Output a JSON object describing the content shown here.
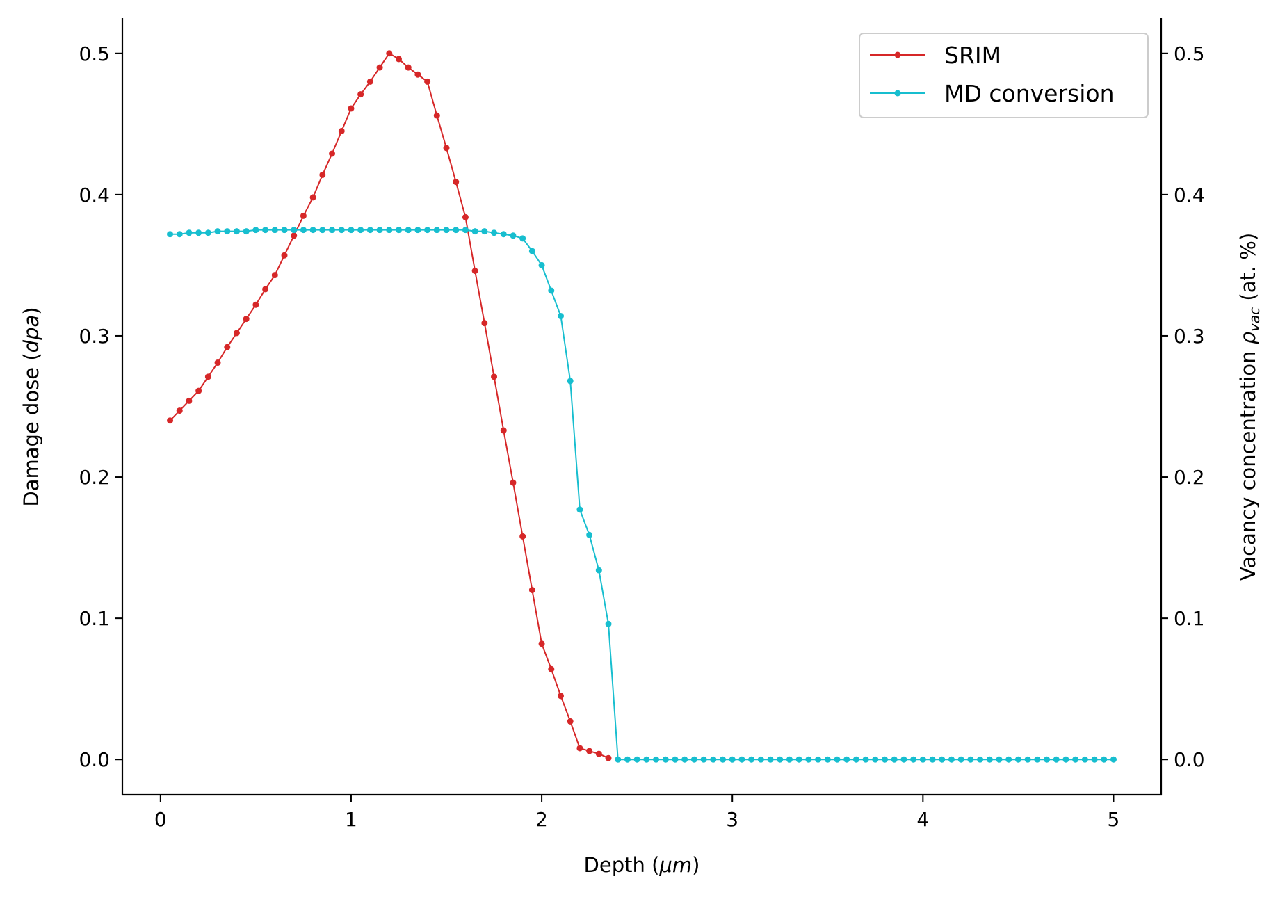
{
  "chart_data": {
    "type": "line",
    "title": "",
    "xlabel": "Depth (μm)",
    "xlabel_parts": {
      "prefix": "Depth (",
      "var": "μm",
      "suffix": ")"
    },
    "ylabel": "Damage dose (dpa)",
    "ylabel_parts": {
      "prefix": "Damage dose (",
      "var": "dpa",
      "suffix": ")"
    },
    "y2label": "Vacancy concentration ρvac (at. %)",
    "y2label_parts": {
      "prefix": "Vacancy concentration ",
      "var": "ρ",
      "sub": "vac",
      "suffix": " (at. %)"
    },
    "xlim": [
      -0.2,
      5.25
    ],
    "ylim": [
      -0.025,
      0.525
    ],
    "y2lim": [
      -0.025,
      0.525
    ],
    "xticks": [
      0,
      1,
      2,
      3,
      4,
      5
    ],
    "xtick_labels": [
      "0",
      "1",
      "2",
      "3",
      "4",
      "5"
    ],
    "yticks": [
      0.0,
      0.1,
      0.2,
      0.3,
      0.4,
      0.5
    ],
    "ytick_labels": [
      "0.0",
      "0.1",
      "0.2",
      "0.3",
      "0.4",
      "0.5"
    ],
    "y2ticks": [
      0.0,
      0.1,
      0.2,
      0.3,
      0.4,
      0.5
    ],
    "y2tick_labels": [
      "0.0",
      "0.1",
      "0.2",
      "0.3",
      "0.4",
      "0.5"
    ],
    "legend_position": "top-right",
    "series": [
      {
        "name": "SRIM",
        "color": "#d62728",
        "axis": "left",
        "x": [
          0.05,
          0.1,
          0.15,
          0.2,
          0.25,
          0.3,
          0.35,
          0.4,
          0.45,
          0.5,
          0.55,
          0.6,
          0.65,
          0.7,
          0.75,
          0.8,
          0.85,
          0.9,
          0.95,
          1.0,
          1.05,
          1.1,
          1.15,
          1.2,
          1.25,
          1.3,
          1.35,
          1.4,
          1.45,
          1.5,
          1.55,
          1.6,
          1.65,
          1.7,
          1.75,
          1.8,
          1.85,
          1.9,
          1.95,
          2.0,
          2.05,
          2.1,
          2.15,
          2.2,
          2.25,
          2.3,
          2.35
        ],
        "values": [
          0.24,
          0.247,
          0.254,
          0.261,
          0.271,
          0.281,
          0.292,
          0.302,
          0.312,
          0.322,
          0.333,
          0.343,
          0.357,
          0.371,
          0.385,
          0.398,
          0.414,
          0.429,
          0.445,
          0.461,
          0.471,
          0.48,
          0.49,
          0.5,
          0.496,
          0.49,
          0.485,
          0.48,
          0.456,
          0.433,
          0.409,
          0.384,
          0.346,
          0.309,
          0.271,
          0.233,
          0.196,
          0.158,
          0.12,
          0.082,
          0.064,
          0.045,
          0.027,
          0.008,
          0.006,
          0.004,
          0.001
        ]
      },
      {
        "name": "MD conversion",
        "color": "#17becf",
        "axis": "right",
        "x": [
          0.05,
          0.1,
          0.15,
          0.2,
          0.25,
          0.3,
          0.35,
          0.4,
          0.45,
          0.5,
          0.55,
          0.6,
          0.65,
          0.7,
          0.75,
          0.8,
          0.85,
          0.9,
          0.95,
          1.0,
          1.05,
          1.1,
          1.15,
          1.2,
          1.25,
          1.3,
          1.35,
          1.4,
          1.45,
          1.5,
          1.55,
          1.6,
          1.65,
          1.7,
          1.75,
          1.8,
          1.85,
          1.9,
          1.95,
          2.0,
          2.05,
          2.1,
          2.15,
          2.2,
          2.25,
          2.3,
          2.35,
          2.4,
          2.45,
          2.5,
          2.55,
          2.6,
          2.65,
          2.7,
          2.75,
          2.8,
          2.85,
          2.9,
          2.95,
          3.0,
          3.05,
          3.1,
          3.15,
          3.2,
          3.25,
          3.3,
          3.35,
          3.4,
          3.45,
          3.5,
          3.55,
          3.6,
          3.65,
          3.7,
          3.75,
          3.8,
          3.85,
          3.9,
          3.95,
          4.0,
          4.05,
          4.1,
          4.15,
          4.2,
          4.25,
          4.3,
          4.35,
          4.4,
          4.45,
          4.5,
          4.55,
          4.6,
          4.65,
          4.7,
          4.75,
          4.8,
          4.85,
          4.9,
          4.95,
          5.0
        ],
        "values": [
          0.372,
          0.372,
          0.373,
          0.373,
          0.373,
          0.374,
          0.374,
          0.374,
          0.374,
          0.375,
          0.375,
          0.375,
          0.375,
          0.375,
          0.375,
          0.375,
          0.375,
          0.375,
          0.375,
          0.375,
          0.375,
          0.375,
          0.375,
          0.375,
          0.375,
          0.375,
          0.375,
          0.375,
          0.375,
          0.375,
          0.375,
          0.375,
          0.374,
          0.374,
          0.373,
          0.372,
          0.371,
          0.369,
          0.36,
          0.35,
          0.332,
          0.314,
          0.268,
          0.177,
          0.159,
          0.134,
          0.096,
          0.0,
          0.0,
          0.0,
          0.0,
          0.0,
          0.0,
          0.0,
          0.0,
          0.0,
          0.0,
          0.0,
          0.0,
          0.0,
          0.0,
          0.0,
          0.0,
          0.0,
          0.0,
          0.0,
          0.0,
          0.0,
          0.0,
          0.0,
          0.0,
          0.0,
          0.0,
          0.0,
          0.0,
          0.0,
          0.0,
          0.0,
          0.0,
          0.0,
          0.0,
          0.0,
          0.0,
          0.0,
          0.0,
          0.0,
          0.0,
          0.0,
          0.0,
          0.0,
          0.0,
          0.0,
          0.0,
          0.0,
          0.0,
          0.0,
          0.0,
          0.0,
          0.0,
          0.0
        ]
      }
    ]
  }
}
